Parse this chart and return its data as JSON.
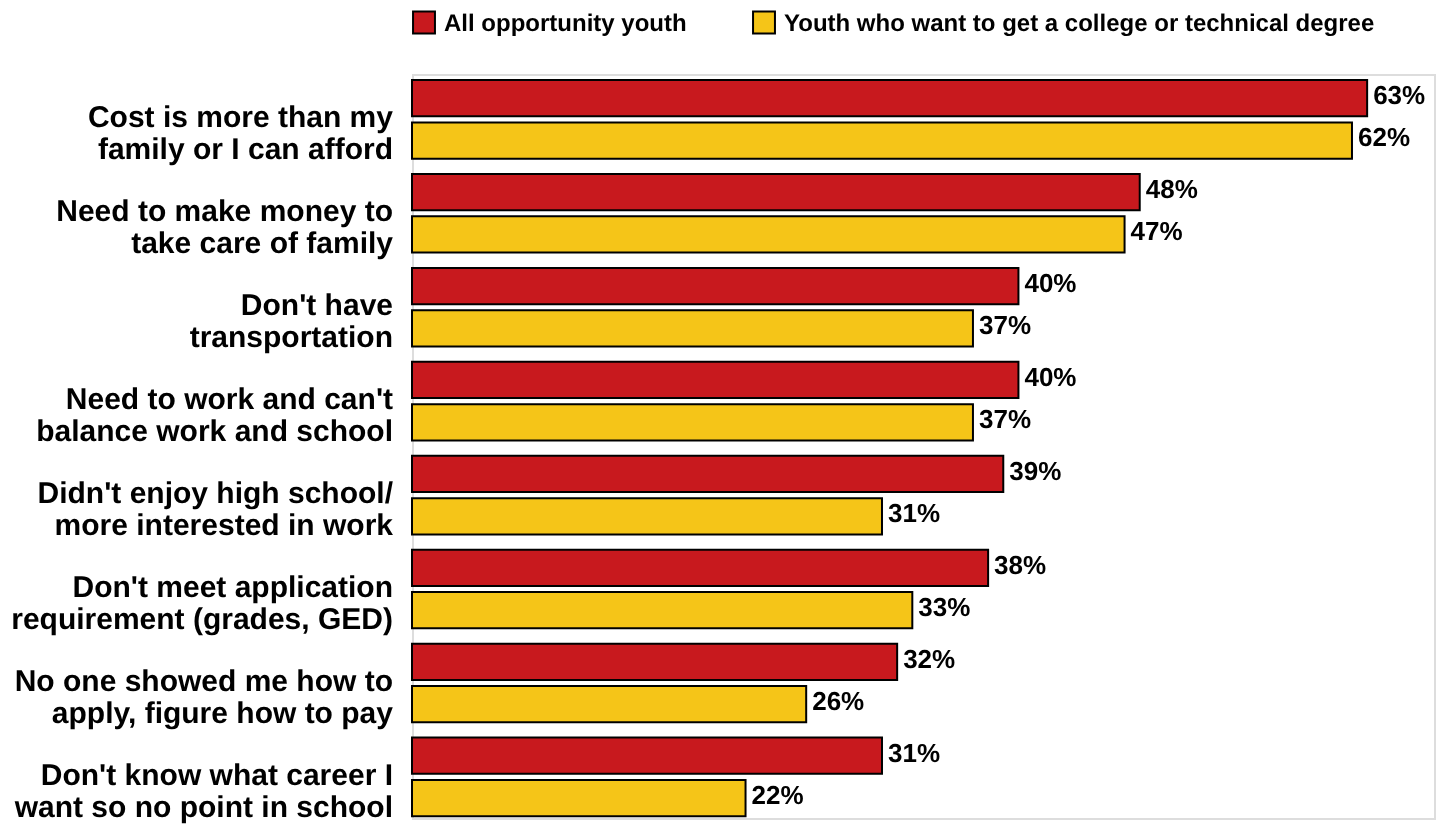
{
  "chart_data": {
    "type": "bar",
    "orientation": "horizontal",
    "legend": "top",
    "categories": [
      "Cost is more than my\nfamily or I can afford",
      "Need to make money to\ntake care of family",
      "Don't have\ntransportation",
      "Need to work and can't\nbalance work and school",
      "Didn't enjoy high school/\nmore interested in work",
      "Don't meet application\nrequirement (grades, GED)",
      "No one showed me how to\napply, figure how to pay",
      "Don't know what career I\nwant so no point in school"
    ],
    "series": [
      {
        "name": "All opportunity youth",
        "color": "#c8191e",
        "values": [
          63,
          48,
          40,
          40,
          39,
          38,
          32,
          31
        ],
        "value_labels": [
          "63%",
          "48%",
          "40%",
          "40%",
          "39%",
          "38%",
          "32%",
          "31%"
        ]
      },
      {
        "name": "Youth who want to get a college or technical degree",
        "color": "#f5c518",
        "values": [
          62,
          47,
          37,
          37,
          31,
          33,
          26,
          22
        ],
        "value_labels": [
          "62%",
          "47%",
          "37%",
          "37%",
          "31%",
          "33%",
          "26%",
          "22%"
        ]
      }
    ]
  }
}
